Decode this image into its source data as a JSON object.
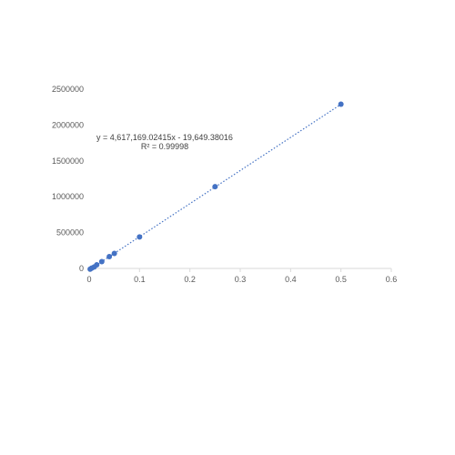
{
  "chart_data": {
    "type": "scatter",
    "title": "",
    "xlabel": "",
    "ylabel": "",
    "xlim": [
      0,
      0.6
    ],
    "ylim": [
      0,
      2500000
    ],
    "x_ticks": [
      0,
      0.1,
      0.2,
      0.3,
      0.4,
      0.5,
      0.6
    ],
    "x_tick_labels": [
      "0",
      "0.1",
      "0.2",
      "0.3",
      "0.4",
      "0.5",
      "0.6"
    ],
    "y_ticks": [
      0,
      500000,
      1000000,
      1500000,
      2000000,
      2500000
    ],
    "y_tick_labels": [
      "0",
      "500000",
      "1000000",
      "1500000",
      "2000000",
      "2500000"
    ],
    "grid": false,
    "legend": "none",
    "series": [
      {
        "x": [
          0.002,
          0.005,
          0.01,
          0.015,
          0.025,
          0.04,
          0.05,
          0.1,
          0.25,
          0.5
        ],
        "y": [
          -10000,
          5000,
          20000,
          50000,
          95000,
          165000,
          210000,
          440000,
          1140000,
          2290000
        ],
        "color": "#4472c4"
      }
    ],
    "trendline": {
      "type": "linear",
      "slope": 4617169.02415,
      "intercept": -19649.38016,
      "style": "dotted",
      "color": "#4472c4"
    },
    "annotations": [
      {
        "text": "y = 4,617,169.02415x - 19,649.38016"
      },
      {
        "text": "R² = 0.99998"
      }
    ]
  }
}
